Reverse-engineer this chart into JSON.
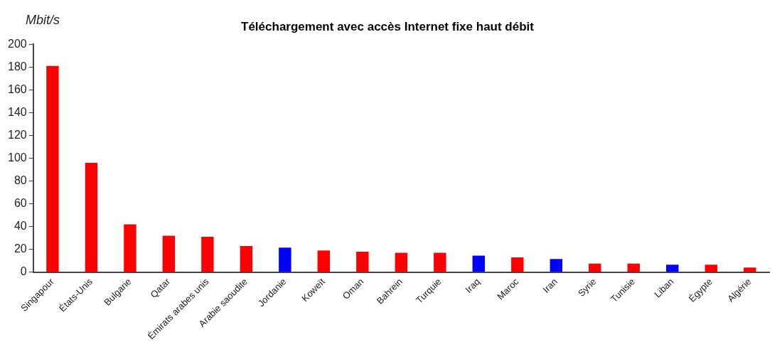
{
  "chart_data": {
    "type": "bar",
    "title": "Téléchargement avec accès Internet fixe haut débit",
    "ylabel": "Mbit/s",
    "categories": [
      "Singapour",
      "États-Unis",
      "Bulgarie",
      "Qatar",
      "Émirats arabes unis",
      "Arabie saoudite",
      "Jordanie",
      "Koweït",
      "Oman",
      "Bahrein",
      "Turquie",
      "Iraq",
      "Maroc",
      "Iran",
      "Syrie",
      "Tunisie",
      "Liban",
      "Égypte",
      "Algérie"
    ],
    "values": [
      181,
      96,
      42,
      32,
      31,
      23,
      21.5,
      19,
      18,
      17,
      17,
      14.5,
      13,
      11.5,
      7.5,
      7.5,
      6.5,
      6.5,
      4
    ],
    "colors": [
      "#ff0000",
      "#ff0000",
      "#ff0000",
      "#ff0000",
      "#ff0000",
      "#ff0000",
      "#0000ff",
      "#ff0000",
      "#ff0000",
      "#ff0000",
      "#ff0000",
      "#0000ff",
      "#ff0000",
      "#0000ff",
      "#ff0000",
      "#ff0000",
      "#0000ff",
      "#ff0000",
      "#ff0000"
    ],
    "ylim": [
      0,
      200
    ],
    "yticks": [
      0,
      20,
      40,
      60,
      80,
      100,
      120,
      140,
      160,
      180,
      200
    ],
    "grid": false,
    "legend": false
  }
}
